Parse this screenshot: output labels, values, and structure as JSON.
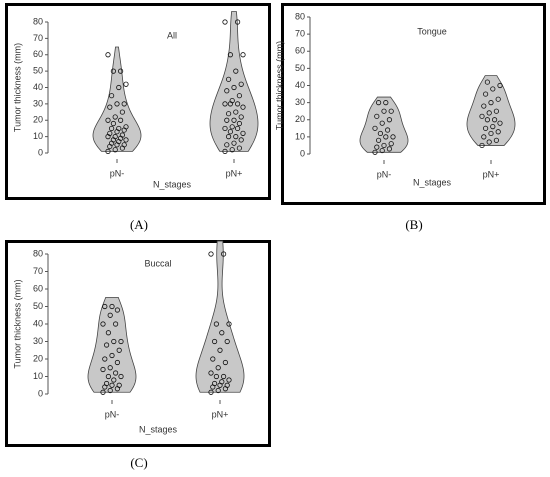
{
  "chart_data": [
    {
      "type": "violin",
      "title": "All",
      "panel_label": "(A)",
      "xlabel": "N_stages",
      "ylabel": "Tumor thickness (mm)",
      "ylim": [
        0,
        80
      ],
      "yticks": [
        0,
        10,
        20,
        30,
        40,
        50,
        60,
        70,
        80
      ],
      "color": "#c8c8c8",
      "categories": [
        "pN-",
        "pN+"
      ],
      "values": [
        [
          1,
          2,
          3,
          4,
          5,
          5,
          6,
          7,
          8,
          8,
          9,
          10,
          10,
          11,
          12,
          13,
          14,
          15,
          15,
          16,
          18,
          20,
          20,
          22,
          25,
          28,
          30,
          30,
          35,
          40,
          42,
          50,
          50,
          60
        ],
        [
          1,
          2,
          3,
          5,
          6,
          8,
          10,
          10,
          12,
          13,
          15,
          15,
          16,
          18,
          20,
          20,
          22,
          24,
          25,
          28,
          30,
          30,
          30,
          32,
          35,
          38,
          40,
          42,
          45,
          50,
          60,
          60,
          80,
          80
        ]
      ]
    },
    {
      "type": "violin",
      "title": "Tongue",
      "panel_label": "(B)",
      "xlabel": "N_stages",
      "ylabel": "Tumor thickness (mm)",
      "ylim": [
        0,
        80
      ],
      "yticks": [
        0,
        10,
        20,
        30,
        40,
        50,
        60,
        70,
        80
      ],
      "color": "#c8c8c8",
      "categories": [
        "pN-",
        "pN+"
      ],
      "values": [
        [
          1,
          2,
          3,
          4,
          5,
          6,
          8,
          10,
          10,
          12,
          14,
          15,
          18,
          20,
          22,
          25,
          25,
          30,
          30
        ],
        [
          5,
          7,
          8,
          10,
          12,
          13,
          15,
          16,
          18,
          20,
          20,
          22,
          24,
          25,
          28,
          30,
          32,
          35,
          38,
          40,
          42
        ]
      ]
    },
    {
      "type": "violin",
      "title": "Buccal",
      "panel_label": "(C)",
      "xlabel": "N_stages",
      "ylabel": "Tumor thickness (mm)",
      "ylim": [
        0,
        80
      ],
      "yticks": [
        0,
        10,
        20,
        30,
        40,
        50,
        60,
        70,
        80
      ],
      "color": "#c8c8c8",
      "categories": [
        "pN-",
        "pN+"
      ],
      "values": [
        [
          1,
          2,
          3,
          4,
          5,
          5,
          6,
          8,
          10,
          10,
          12,
          14,
          15,
          18,
          20,
          22,
          25,
          28,
          30,
          30,
          35,
          40,
          40,
          45,
          48,
          50,
          50
        ],
        [
          1,
          2,
          3,
          4,
          5,
          5,
          6,
          7,
          8,
          10,
          10,
          12,
          15,
          18,
          20,
          25,
          30,
          30,
          35,
          40,
          40,
          80,
          80
        ]
      ]
    }
  ]
}
